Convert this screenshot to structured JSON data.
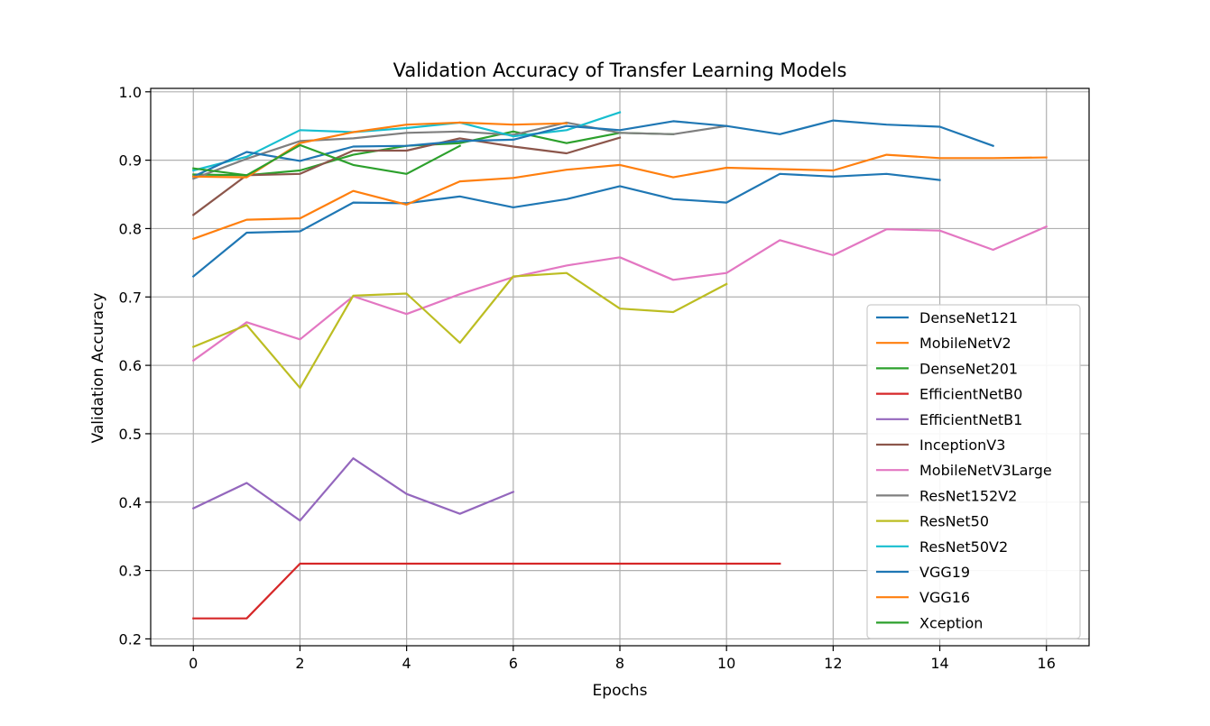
{
  "chart_data": {
    "type": "line",
    "title": "Validation Accuracy of Transfer Learning Models",
    "xlabel": "Epochs",
    "ylabel": "Validation Accuracy",
    "xlim": [
      -0.8,
      16.8
    ],
    "ylim": [
      0.19,
      1.005
    ],
    "xticks": [
      0,
      2,
      4,
      6,
      8,
      10,
      12,
      14,
      16
    ],
    "yticks": [
      0.2,
      0.3,
      0.4,
      0.5,
      0.6,
      0.7,
      0.8,
      0.9,
      1.0
    ],
    "xtick_labels": [
      "0",
      "2",
      "4",
      "6",
      "8",
      "10",
      "12",
      "14",
      "16"
    ],
    "ytick_labels": [
      "0.2",
      "0.3",
      "0.4",
      "0.5",
      "0.6",
      "0.7",
      "0.8",
      "0.9",
      "1.0"
    ],
    "grid": true,
    "legend_position": "lower-right",
    "series": [
      {
        "name": "DenseNet121",
        "color": "#1f77b4",
        "values": [
          0.73,
          0.794,
          0.796,
          0.838,
          0.837,
          0.847,
          0.831,
          0.843,
          0.862,
          0.843,
          0.838,
          0.88,
          0.876,
          0.88,
          0.871
        ]
      },
      {
        "name": "MobileNetV2",
        "color": "#ff7f0e",
        "values": [
          0.785,
          0.813,
          0.815,
          0.855,
          0.835,
          0.869,
          0.874,
          0.886,
          0.893,
          0.875,
          0.889,
          0.887,
          0.885,
          0.908,
          0.903,
          0.903,
          0.904
        ]
      },
      {
        "name": "DenseNet201",
        "color": "#2ca02c",
        "values": [
          0.879,
          0.878,
          0.885,
          0.908,
          0.921,
          0.925,
          0.942,
          0.925,
          0.94,
          0.938
        ]
      },
      {
        "name": "EfficientNetB0",
        "color": "#d62728",
        "values": [
          0.23,
          0.23,
          0.31,
          0.31,
          0.31,
          0.31,
          0.31,
          0.31,
          0.31,
          0.31,
          0.31,
          0.31
        ]
      },
      {
        "name": "EfficientNetB1",
        "color": "#9467bd",
        "values": [
          0.391,
          0.428,
          0.373,
          0.464,
          0.412,
          0.383,
          0.415
        ]
      },
      {
        "name": "InceptionV3",
        "color": "#8c564b",
        "values": [
          0.82,
          0.878,
          0.88,
          0.914,
          0.914,
          0.932,
          0.92,
          0.91,
          0.933
        ]
      },
      {
        "name": "MobileNetV3Large",
        "color": "#e377c2",
        "values": [
          0.607,
          0.663,
          0.638,
          0.701,
          0.675,
          0.704,
          0.729,
          0.746,
          0.758,
          0.725,
          0.735,
          0.783,
          0.761,
          0.799,
          0.797,
          0.769,
          0.803
        ]
      },
      {
        "name": "ResNet152V2",
        "color": "#7f7f7f",
        "values": [
          0.873,
          0.902,
          0.928,
          0.932,
          0.94,
          0.942,
          0.937,
          0.955,
          0.94,
          0.938,
          0.95
        ]
      },
      {
        "name": "ResNet50",
        "color": "#bcbd22",
        "values": [
          0.627,
          0.659,
          0.567,
          0.702,
          0.705,
          0.633,
          0.73,
          0.735,
          0.683,
          0.678,
          0.719
        ]
      },
      {
        "name": "ResNet50V2",
        "color": "#17becf",
        "values": [
          0.885,
          0.905,
          0.944,
          0.941,
          0.947,
          0.955,
          0.935,
          0.944,
          0.97
        ]
      },
      {
        "name": "VGG19",
        "color": "#1f77b4",
        "values": [
          0.876,
          0.912,
          0.899,
          0.92,
          0.921,
          0.928,
          0.93,
          0.95,
          0.944,
          0.957,
          0.95,
          0.938,
          0.958,
          0.952,
          0.949,
          0.921
        ]
      },
      {
        "name": "VGG16",
        "color": "#ff7f0e",
        "values": [
          0.876,
          0.875,
          0.925,
          0.941,
          0.952,
          0.955,
          0.952,
          0.954
        ]
      },
      {
        "name": "Xception",
        "color": "#2ca02c",
        "values": [
          0.888,
          0.878,
          0.922,
          0.893,
          0.88,
          0.921
        ]
      }
    ]
  }
}
